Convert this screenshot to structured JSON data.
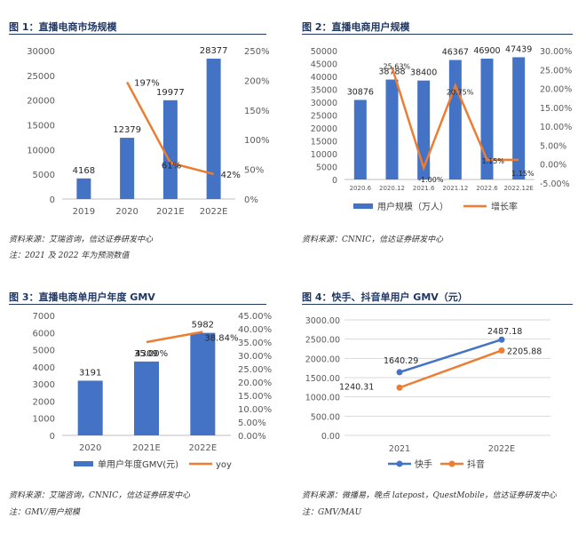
{
  "panels": [
    {
      "title": "图 1：直播电商市场规模",
      "source": "资料来源：艾瑞咨询，信达证券研发中心",
      "note": "注：2021 及 2022 年为预测数值"
    },
    {
      "title": "图 2：直播电商用户规模",
      "source": "资料来源：CNNIC，信达证券研发中心",
      "note": ""
    },
    {
      "title": "图 3：直播电商单用户年度 GMV",
      "source": "资料来源：艾瑞咨询，CNNIC，信达证券研发中心",
      "note": "注：GMV/用户规模"
    },
    {
      "title": "图 4：快手、抖音单用户 GMV（元）",
      "source": "资料来源：微播易，晚点 latepost，QuestMobile，信达证券研发中心",
      "note": "注：GMV/MAU"
    }
  ],
  "colors": {
    "bar": "#4472c4",
    "line_orange": "#ed7d31",
    "line_blue": "#4472c4",
    "title": "#1f3864"
  },
  "chart_data": [
    {
      "type": "bar",
      "categories": [
        "2019",
        "2020",
        "2021E",
        "2022E"
      ],
      "series": [
        {
          "values": [
            4168,
            12379,
            19977,
            28377
          ],
          "labels": [
            "4168",
            "12379",
            "19977",
            "28377"
          ]
        },
        {
          "values": [
            null,
            197,
            61,
            42
          ],
          "labels": [
            "",
            "197%",
            "61%",
            "42%"
          ]
        }
      ],
      "ylim": [
        0,
        30000
      ],
      "yticks": [
        "0",
        "5000",
        "10000",
        "15000",
        "20000",
        "25000",
        "30000"
      ],
      "y2lim": [
        0,
        250
      ],
      "y2ticks": [
        "0%",
        "50%",
        "100%",
        "150%",
        "200%",
        "250%"
      ]
    },
    {
      "type": "bar",
      "categories": [
        "2020.6",
        "2020.12",
        "2021.6",
        "2021.12",
        "2022.6",
        "2022.12E"
      ],
      "series": [
        {
          "name": "用户规模（万人）",
          "values": [
            30876,
            38788,
            38400,
            46367,
            46900,
            47439
          ],
          "labels": [
            "30876",
            "38788",
            "38400",
            "46367",
            "46900",
            "47439"
          ]
        },
        {
          "name": "增长率",
          "values": [
            null,
            25.63,
            -1.0,
            20.75,
            1.15,
            1.15
          ],
          "labels": [
            "",
            "25.63%",
            "-1.00%",
            "20.75%",
            "1.15%",
            "1.15%"
          ]
        }
      ],
      "ylim": [
        0,
        50000
      ],
      "yticks": [
        "0",
        "5000",
        "10000",
        "15000",
        "20000",
        "25000",
        "30000",
        "35000",
        "40000",
        "45000",
        "50000"
      ],
      "y2lim": [
        -5,
        30
      ],
      "y2ticks": [
        "-5.00%",
        "0.00%",
        "5.00%",
        "10.00%",
        "15.00%",
        "20.00%",
        "25.00%",
        "30.00%"
      ],
      "legend": "bottom"
    },
    {
      "type": "bar",
      "categories": [
        "2020",
        "2021E",
        "2022E"
      ],
      "series": [
        {
          "name": "单用户年度GMV(元)",
          "values": [
            3191,
            4309,
            5982
          ],
          "labels": [
            "3191",
            "4309",
            "5982"
          ]
        },
        {
          "name": "yoy",
          "values": [
            null,
            35.0,
            38.84
          ],
          "labels": [
            "",
            "35.00%",
            "38.84%"
          ]
        }
      ],
      "ylim": [
        0,
        7000
      ],
      "yticks": [
        "0",
        "1000",
        "2000",
        "3000",
        "4000",
        "5000",
        "6000",
        "7000"
      ],
      "y2lim": [
        0,
        45
      ],
      "y2ticks": [
        "0.00%",
        "5.00%",
        "10.00%",
        "15.00%",
        "20.00%",
        "25.00%",
        "30.00%",
        "35.00%",
        "40.00%",
        "45.00%"
      ],
      "legend": "bottom"
    },
    {
      "type": "line",
      "categories": [
        "2021",
        "2022E"
      ],
      "series": [
        {
          "name": "快手",
          "values": [
            1640.29,
            2487.18
          ],
          "labels": [
            "1640.29",
            "2487.18"
          ]
        },
        {
          "name": "抖音",
          "values": [
            1240.31,
            2205.88
          ],
          "labels": [
            "1240.31",
            "2205.88"
          ]
        }
      ],
      "ylim": [
        0,
        3000
      ],
      "yticks": [
        "0.00",
        "500.00",
        "1000.00",
        "1500.00",
        "2000.00",
        "2500.00",
        "3000.00"
      ],
      "grid": true,
      "legend": "bottom"
    }
  ]
}
